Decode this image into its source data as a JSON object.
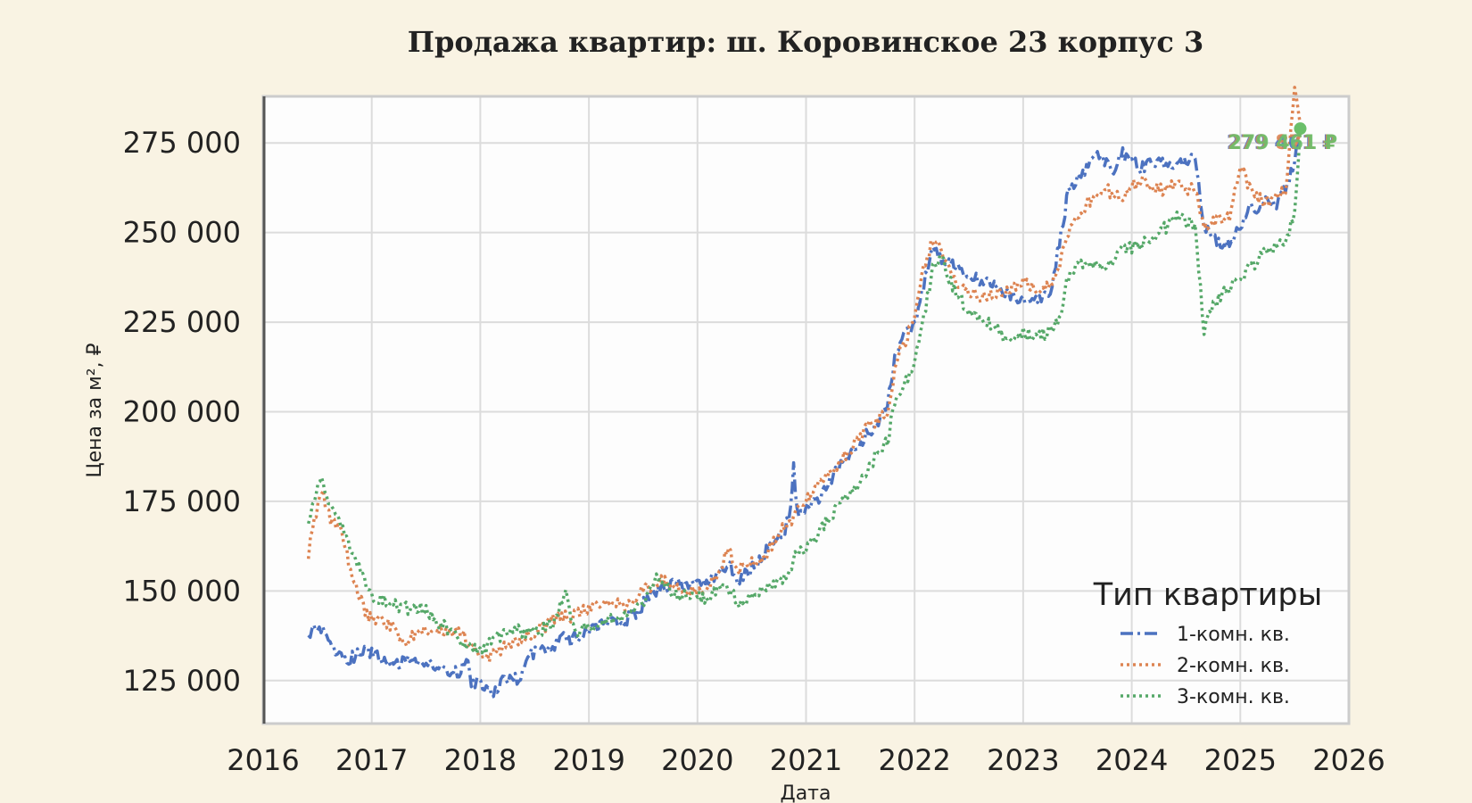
{
  "chart_data": {
    "type": "line",
    "title": "Продажа квартир: ш. Коровинское 23 корпус 3",
    "xlabel": "Дата",
    "ylabel": "Цена за м², ₽",
    "xlim": [
      "2016-01-01",
      "2026-01-01"
    ],
    "ylim": [
      113000,
      288000
    ],
    "x_ticks": [
      "2016",
      "2017",
      "2018",
      "2019",
      "2020",
      "2021",
      "2022",
      "2023",
      "2024",
      "2025",
      "2026"
    ],
    "y_ticks": [
      125000,
      150000,
      175000,
      200000,
      225000,
      250000,
      275000
    ],
    "y_tick_labels": [
      "125 000",
      "150 000",
      "175 000",
      "200 000",
      "225 000",
      "250 000",
      "275 000"
    ],
    "grid": true,
    "legend": {
      "title": "Тип квартиры",
      "position": "bottom-right"
    },
    "series": [
      {
        "name": "1-комн. кв.",
        "color": "#4c72c0",
        "dash": "dashdot",
        "points": [
          [
            "2016-06-01",
            138000
          ],
          [
            "2016-07-01",
            140000
          ],
          [
            "2016-08-01",
            138000
          ],
          [
            "2016-09-01",
            133000
          ],
          [
            "2016-10-15",
            131000
          ],
          [
            "2016-12-01",
            133000
          ],
          [
            "2017-01-01",
            133000
          ],
          [
            "2017-03-01",
            130000
          ],
          [
            "2017-05-01",
            130000
          ],
          [
            "2017-07-01",
            130000
          ],
          [
            "2017-09-01",
            128000
          ],
          [
            "2017-10-15",
            127000
          ],
          [
            "2017-11-15",
            131000
          ],
          [
            "2017-12-01",
            125000
          ],
          [
            "2018-01-15",
            123000
          ],
          [
            "2018-02-15",
            122000
          ],
          [
            "2018-03-15",
            125000
          ],
          [
            "2018-04-15",
            125000
          ],
          [
            "2018-05-15",
            126000
          ],
          [
            "2018-06-15",
            132000
          ],
          [
            "2018-07-15",
            134000
          ],
          [
            "2018-09-01",
            134000
          ],
          [
            "2018-10-01",
            138000
          ],
          [
            "2018-11-01",
            136000
          ],
          [
            "2018-12-01",
            138000
          ],
          [
            "2019-02-01",
            140000
          ],
          [
            "2019-04-01",
            141000
          ],
          [
            "2019-06-01",
            143000
          ],
          [
            "2019-07-15",
            148000
          ],
          [
            "2019-09-01",
            150000
          ],
          [
            "2019-10-15",
            152000
          ],
          [
            "2019-12-01",
            151000
          ],
          [
            "2020-02-01",
            152000
          ],
          [
            "2020-03-15",
            155000
          ],
          [
            "2020-04-15",
            158000
          ],
          [
            "2020-05-15",
            152000
          ],
          [
            "2020-06-15",
            155000
          ],
          [
            "2020-07-15",
            158000
          ],
          [
            "2020-09-01",
            162000
          ],
          [
            "2020-10-15",
            166000
          ],
          [
            "2020-11-10",
            172000
          ],
          [
            "2020-11-20",
            186000
          ],
          [
            "2020-12-01",
            172000
          ],
          [
            "2021-01-15",
            173000
          ],
          [
            "2021-03-01",
            178000
          ],
          [
            "2021-04-15",
            184000
          ],
          [
            "2021-06-01",
            188000
          ],
          [
            "2021-07-15",
            193000
          ],
          [
            "2021-09-01",
            197000
          ],
          [
            "2021-10-01",
            203000
          ],
          [
            "2021-11-01",
            218000
          ],
          [
            "2021-12-01",
            222000
          ],
          [
            "2022-01-01",
            225000
          ],
          [
            "2022-02-01",
            235000
          ],
          [
            "2022-03-01",
            247000
          ],
          [
            "2022-04-01",
            243000
          ],
          [
            "2022-05-01",
            241000
          ],
          [
            "2022-06-01",
            240000
          ],
          [
            "2022-07-01",
            238000
          ],
          [
            "2022-08-01",
            237000
          ],
          [
            "2022-10-01",
            235000
          ],
          [
            "2022-12-01",
            232000
          ],
          [
            "2023-02-01",
            231000
          ],
          [
            "2023-04-01",
            233000
          ],
          [
            "2023-05-01",
            247000
          ],
          [
            "2023-06-01",
            262000
          ],
          [
            "2023-07-01",
            265000
          ],
          [
            "2023-08-01",
            268000
          ],
          [
            "2023-09-01",
            272000
          ],
          [
            "2023-10-01",
            270000
          ],
          [
            "2023-11-01",
            268000
          ],
          [
            "2023-12-01",
            272000
          ],
          [
            "2024-01-01",
            270000
          ],
          [
            "2024-02-01",
            268000
          ],
          [
            "2024-04-01",
            270000
          ],
          [
            "2024-06-01",
            268000
          ],
          [
            "2024-08-01",
            272000
          ],
          [
            "2024-09-01",
            250000
          ],
          [
            "2024-10-01",
            250000
          ],
          [
            "2024-11-01",
            245000
          ],
          [
            "2024-12-01",
            248000
          ],
          [
            "2025-01-01",
            252000
          ],
          [
            "2025-02-01",
            258000
          ],
          [
            "2025-03-01",
            255000
          ],
          [
            "2025-04-01",
            260000
          ],
          [
            "2025-05-01",
            258000
          ],
          [
            "2025-06-01",
            262000
          ],
          [
            "2025-07-01",
            270000
          ],
          [
            "2025-07-20",
            279000
          ]
        ]
      },
      {
        "name": "2-комн. кв.",
        "color": "#dd8452",
        "dash": "dotted",
        "points": [
          [
            "2016-06-01",
            160000
          ],
          [
            "2016-06-15",
            168000
          ],
          [
            "2016-07-15",
            178000
          ],
          [
            "2016-08-15",
            170000
          ],
          [
            "2016-09-15",
            168000
          ],
          [
            "2016-10-15",
            158000
          ],
          [
            "2016-11-15",
            150000
          ],
          [
            "2016-12-15",
            143000
          ],
          [
            "2017-02-01",
            142000
          ],
          [
            "2017-03-15",
            140000
          ],
          [
            "2017-04-15",
            135000
          ],
          [
            "2017-05-15",
            137000
          ],
          [
            "2017-07-01",
            139000
          ],
          [
            "2017-09-01",
            139000
          ],
          [
            "2017-11-01",
            138000
          ],
          [
            "2017-12-15",
            134000
          ],
          [
            "2018-02-01",
            132000
          ],
          [
            "2018-03-15",
            134000
          ],
          [
            "2018-05-01",
            136000
          ],
          [
            "2018-07-01",
            138000
          ],
          [
            "2018-09-01",
            142000
          ],
          [
            "2018-11-01",
            143000
          ],
          [
            "2019-01-01",
            145000
          ],
          [
            "2019-03-01",
            147000
          ],
          [
            "2019-05-01",
            146000
          ],
          [
            "2019-07-01",
            150000
          ],
          [
            "2019-09-01",
            153000
          ],
          [
            "2019-11-01",
            151000
          ],
          [
            "2020-01-01",
            150000
          ],
          [
            "2020-03-01",
            153000
          ],
          [
            "2020-04-15",
            162000
          ],
          [
            "2020-05-15",
            156000
          ],
          [
            "2020-07-01",
            158000
          ],
          [
            "2020-08-15",
            160000
          ],
          [
            "2020-10-01",
            166000
          ],
          [
            "2020-12-01",
            172000
          ],
          [
            "2021-02-01",
            178000
          ],
          [
            "2021-04-01",
            184000
          ],
          [
            "2021-06-01",
            190000
          ],
          [
            "2021-08-01",
            196000
          ],
          [
            "2021-10-01",
            200000
          ],
          [
            "2021-11-01",
            215000
          ],
          [
            "2021-12-01",
            220000
          ],
          [
            "2022-01-01",
            227000
          ],
          [
            "2022-02-01",
            240000
          ],
          [
            "2022-03-01",
            248000
          ],
          [
            "2022-04-01",
            245000
          ],
          [
            "2022-05-01",
            238000
          ],
          [
            "2022-07-01",
            233000
          ],
          [
            "2022-09-01",
            232000
          ],
          [
            "2022-11-01",
            234000
          ],
          [
            "2023-01-01",
            236000
          ],
          [
            "2023-03-01",
            233000
          ],
          [
            "2023-05-01",
            240000
          ],
          [
            "2023-06-01",
            250000
          ],
          [
            "2023-08-01",
            258000
          ],
          [
            "2023-10-01",
            262000
          ],
          [
            "2023-12-01",
            260000
          ],
          [
            "2024-02-01",
            265000
          ],
          [
            "2024-04-01",
            262000
          ],
          [
            "2024-06-01",
            263000
          ],
          [
            "2024-08-01",
            262000
          ],
          [
            "2024-09-01",
            250000
          ],
          [
            "2024-10-01",
            253000
          ],
          [
            "2024-12-01",
            255000
          ],
          [
            "2025-01-01",
            270000
          ],
          [
            "2025-02-01",
            262000
          ],
          [
            "2025-04-01",
            258000
          ],
          [
            "2025-06-01",
            262000
          ],
          [
            "2025-07-01",
            290000
          ],
          [
            "2025-07-20",
            280000
          ]
        ]
      },
      {
        "name": "3-комн. кв.",
        "color": "#55a868",
        "dash": "dotted",
        "points": [
          [
            "2016-06-01",
            170000
          ],
          [
            "2016-06-15",
            175000
          ],
          [
            "2016-07-15",
            182000
          ],
          [
            "2016-08-01",
            176000
          ],
          [
            "2016-09-01",
            172000
          ],
          [
            "2016-10-01",
            165000
          ],
          [
            "2016-11-01",
            160000
          ],
          [
            "2016-12-01",
            155000
          ],
          [
            "2017-01-01",
            148000
          ],
          [
            "2017-03-01",
            147000
          ],
          [
            "2017-05-01",
            145000
          ],
          [
            "2017-07-01",
            145000
          ],
          [
            "2017-09-01",
            140000
          ],
          [
            "2017-11-01",
            136000
          ],
          [
            "2018-01-01",
            133000
          ],
          [
            "2018-03-01",
            137000
          ],
          [
            "2018-05-01",
            139000
          ],
          [
            "2018-07-01",
            138000
          ],
          [
            "2018-09-01",
            141000
          ],
          [
            "2018-10-15",
            150000
          ],
          [
            "2018-11-15",
            138000
          ],
          [
            "2019-01-01",
            140000
          ],
          [
            "2019-03-01",
            142000
          ],
          [
            "2019-05-01",
            143000
          ],
          [
            "2019-07-01",
            147000
          ],
          [
            "2019-08-15",
            155000
          ],
          [
            "2019-10-01",
            150000
          ],
          [
            "2019-12-01",
            148000
          ],
          [
            "2020-02-01",
            148000
          ],
          [
            "2020-04-01",
            151000
          ],
          [
            "2020-06-01",
            146000
          ],
          [
            "2020-08-01",
            150000
          ],
          [
            "2020-10-01",
            152000
          ],
          [
            "2020-12-01",
            160000
          ],
          [
            "2021-02-01",
            165000
          ],
          [
            "2021-04-01",
            172000
          ],
          [
            "2021-06-01",
            177000
          ],
          [
            "2021-08-01",
            185000
          ],
          [
            "2021-10-01",
            192000
          ],
          [
            "2021-11-01",
            205000
          ],
          [
            "2021-12-15",
            210000
          ],
          [
            "2022-01-15",
            218000
          ],
          [
            "2022-03-01",
            240000
          ],
          [
            "2022-04-01",
            243000
          ],
          [
            "2022-05-01",
            236000
          ],
          [
            "2022-07-01",
            228000
          ],
          [
            "2022-09-01",
            225000
          ],
          [
            "2022-11-01",
            221000
          ],
          [
            "2023-01-01",
            222000
          ],
          [
            "2023-03-01",
            221000
          ],
          [
            "2023-05-01",
            226000
          ],
          [
            "2023-06-01",
            238000
          ],
          [
            "2023-08-01",
            242000
          ],
          [
            "2023-10-01",
            240000
          ],
          [
            "2023-12-01",
            245000
          ],
          [
            "2024-02-01",
            247000
          ],
          [
            "2024-04-01",
            250000
          ],
          [
            "2024-06-01",
            254000
          ],
          [
            "2024-08-01",
            252000
          ],
          [
            "2024-09-01",
            222000
          ],
          [
            "2024-10-01",
            230000
          ],
          [
            "2024-12-01",
            235000
          ],
          [
            "2025-02-01",
            240000
          ],
          [
            "2025-04-01",
            245000
          ],
          [
            "2025-06-01",
            248000
          ],
          [
            "2025-07-01",
            255000
          ],
          [
            "2025-07-20",
            279000
          ]
        ]
      }
    ],
    "end_labels": [
      {
        "text": "279 461 ₽",
        "color": "#4c72c0"
      },
      {
        "text": "279 871 ₽",
        "color": "#dd8452"
      },
      {
        "text": "279 461 ₽",
        "color": "#6abf6a"
      }
    ],
    "end_marker_color": "#6abf6a"
  }
}
